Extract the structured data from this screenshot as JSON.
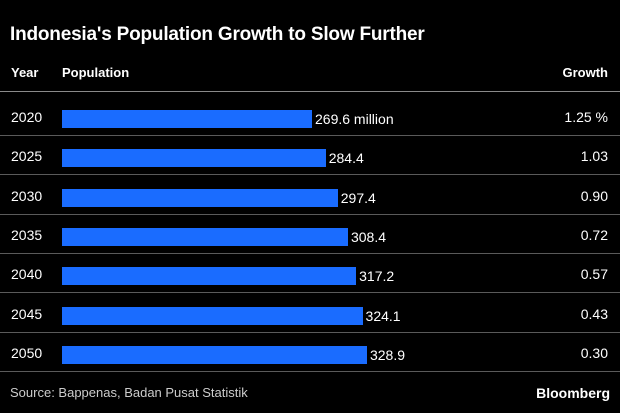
{
  "title": "Indonesia's Population Growth to Slow Further",
  "headers": {
    "year": "Year",
    "population": "Population",
    "growth": "Growth"
  },
  "source": "Source: Bappenas, Badan Pusat Statistik",
  "brand": "Bloomberg",
  "colors": {
    "background": "#000000",
    "bar": "#1a6cff",
    "text": "#ffffff"
  },
  "chart_data": {
    "type": "bar",
    "orientation": "horizontal",
    "title": "Indonesia's Population Growth to Slow Further",
    "categories": [
      "2020",
      "2025",
      "2030",
      "2035",
      "2040",
      "2045",
      "2050"
    ],
    "series": [
      {
        "name": "Population",
        "values": [
          269.6,
          284.4,
          297.4,
          308.4,
          317.2,
          324.1,
          328.9
        ]
      },
      {
        "name": "Growth",
        "values": [
          1.25,
          1.03,
          0.9,
          0.72,
          0.57,
          0.43,
          0.3
        ]
      }
    ],
    "value_labels": [
      "269.6 million",
      "284.4",
      "297.4",
      "308.4",
      "317.2",
      "324.1",
      "328.9"
    ],
    "growth_labels": [
      "1.25 %",
      "1.03",
      "0.90",
      "0.72",
      "0.57",
      "0.43",
      "0.30"
    ],
    "xlim": [
      0,
      400
    ]
  }
}
